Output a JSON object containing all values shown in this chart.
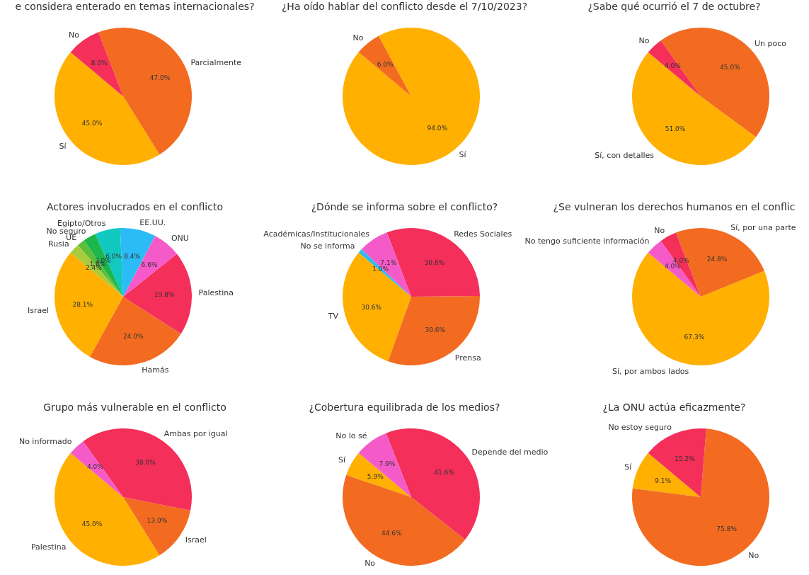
{
  "chart_data": [
    {
      "type": "pie",
      "title": "e considera enterado en temas internacionales?",
      "categories": [
        "Sí",
        "Parcialmente",
        "No"
      ],
      "values": [
        45,
        47,
        8
      ],
      "colors": [
        "#ffb000",
        "#f26b21",
        "#f42f5a"
      ],
      "value_labels": [
        "45.0%",
        "47.0%",
        "8.0%"
      ]
    },
    {
      "type": "pie",
      "title": "¿Ha oído hablar del conflicto desde el 7/10/2023?",
      "categories": [
        "Sí",
        "No"
      ],
      "values": [
        94,
        6
      ],
      "colors": [
        "#ffb000",
        "#f26b21"
      ],
      "value_labels": [
        "94.0%",
        "6.0%"
      ]
    },
    {
      "type": "pie",
      "title": "¿Sabe qué ocurrió el 7 de octubre?",
      "categories": [
        "Sí, con detalles",
        "Un poco",
        "No"
      ],
      "values": [
        51,
        45,
        4
      ],
      "colors": [
        "#ffb000",
        "#f26b21",
        "#f42f5a"
      ],
      "value_labels": [
        "51.0%",
        "45.0%",
        "4.0%"
      ]
    },
    {
      "type": "pie",
      "title": "Actores involucrados en el conflicto",
      "categories": [
        "Israel",
        "Hamás",
        "Palestina",
        "ONU",
        "EE.UU.",
        "Egipto/Otros",
        "No seguro",
        "UE",
        "Rusia"
      ],
      "values": [
        28.1,
        24.0,
        19.8,
        6.6,
        8.4,
        6.0,
        3.0,
        1.8,
        2.4
      ],
      "colors": [
        "#ffb000",
        "#f26b21",
        "#f42f5a",
        "#f55bc8",
        "#2bbcf5",
        "#12c9c0",
        "#1db64a",
        "#5cbf3a",
        "#a8cc3c"
      ],
      "value_labels": [
        "28.1%",
        "24.0%",
        "19.8%",
        "6.6%",
        "8.4%",
        "6.0%",
        "3.0%",
        "1.8%",
        "2.4%"
      ]
    },
    {
      "type": "pie",
      "title": "¿Dónde se informa sobre el conflicto?",
      "categories": [
        "TV",
        "Prensa",
        "Redes Sociales",
        "Académicas/Institucionales",
        "No se informa"
      ],
      "values": [
        30.6,
        30.6,
        30.6,
        7.1,
        1.0
      ],
      "colors": [
        "#ffb000",
        "#f26b21",
        "#f42f5a",
        "#f55bc8",
        "#2bbcf5"
      ],
      "value_labels": [
        "30.6%",
        "30.6%",
        "30.6%",
        "7.1%",
        "1.0%"
      ]
    },
    {
      "type": "pie",
      "title": "¿Se vulneran los derechos humanos en el conflic",
      "categories": [
        "Sí, por ambos lados",
        "Sí, por una parte",
        "No",
        "No tengo suficiente información"
      ],
      "values": [
        67.3,
        24.8,
        4.0,
        4.0
      ],
      "colors": [
        "#ffb000",
        "#f26b21",
        "#f42f5a",
        "#f55bc8"
      ],
      "value_labels": [
        "67.3%",
        "24.8%",
        "4.0%",
        "4.0%"
      ]
    },
    {
      "type": "pie",
      "title": "Grupo más vulnerable en el conflicto",
      "categories": [
        "Palestina",
        "Israel",
        "Ambas por igual",
        "No informado"
      ],
      "values": [
        45,
        13,
        38,
        4
      ],
      "colors": [
        "#ffb000",
        "#f26b21",
        "#f42f5a",
        "#f55bc8"
      ],
      "value_labels": [
        "45.0%",
        "13.0%",
        "38.0%",
        "4.0%"
      ]
    },
    {
      "type": "pie",
      "title": "¿Cobertura equilibrada de los medios?",
      "categories": [
        "Sí",
        "No",
        "Depende del medio",
        "No lo sé"
      ],
      "values": [
        5.9,
        44.6,
        41.6,
        7.9
      ],
      "colors": [
        "#ffb000",
        "#f26b21",
        "#f42f5a",
        "#f55bc8"
      ],
      "value_labels": [
        "5.9%",
        "44.6%",
        "41.6%",
        "7.9%"
      ]
    },
    {
      "type": "pie",
      "title": "¿La ONU actúa eficazmente?",
      "categories": [
        "Sí",
        "No",
        "No estoy seguro"
      ],
      "values": [
        9.1,
        75.8,
        15.2
      ],
      "colors": [
        "#ffb000",
        "#f26b21",
        "#f42f5a"
      ],
      "value_labels": [
        "9.1%",
        "75.8%",
        "15.2%"
      ]
    }
  ]
}
